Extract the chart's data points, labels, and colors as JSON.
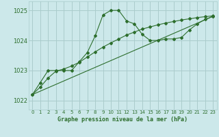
{
  "bg_color": "#cce8ea",
  "grid_color": "#aacccc",
  "line_color": "#2d6e2d",
  "xlabel": "Graphe pression niveau de la mer (hPa)",
  "xlim": [
    -0.5,
    23.5
  ],
  "ylim": [
    1021.7,
    1025.3
  ],
  "yticks": [
    1022,
    1023,
    1024,
    1025
  ],
  "xticks": [
    0,
    1,
    2,
    3,
    4,
    5,
    6,
    7,
    8,
    9,
    10,
    11,
    12,
    13,
    14,
    15,
    16,
    17,
    18,
    19,
    20,
    21,
    22,
    23
  ],
  "line1_x": [
    0,
    1,
    2,
    3,
    4,
    5,
    6,
    7,
    8,
    9,
    10,
    11,
    12,
    13,
    14,
    15,
    16,
    17,
    18,
    19,
    20,
    21,
    22,
    23
  ],
  "line1_y": [
    1022.2,
    1022.6,
    1023.0,
    1023.0,
    1023.0,
    1023.0,
    1023.3,
    1023.6,
    1024.15,
    1024.85,
    1025.0,
    1025.0,
    1024.65,
    1024.55,
    1024.2,
    1024.0,
    1024.0,
    1024.05,
    1024.05,
    1024.1,
    1024.35,
    1024.55,
    1024.7,
    1024.8
  ],
  "line2_x": [
    0,
    23
  ],
  "line2_y": [
    1022.2,
    1024.8
  ],
  "line3_x": [
    0,
    1,
    2,
    3,
    4,
    5,
    6,
    7,
    8,
    9,
    10,
    11,
    12,
    13,
    14,
    15,
    16,
    17,
    18,
    19,
    20,
    21,
    22,
    23
  ],
  "line3_y": [
    1022.2,
    1022.45,
    1022.75,
    1022.98,
    1023.05,
    1023.15,
    1023.28,
    1023.45,
    1023.62,
    1023.78,
    1023.92,
    1024.05,
    1024.18,
    1024.28,
    1024.38,
    1024.45,
    1024.52,
    1024.58,
    1024.63,
    1024.68,
    1024.72,
    1024.76,
    1024.79,
    1024.82
  ]
}
